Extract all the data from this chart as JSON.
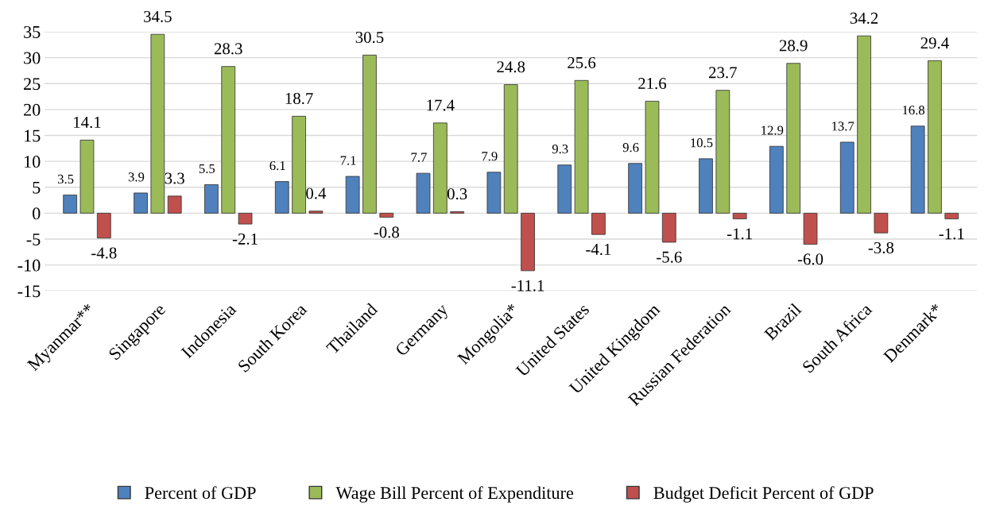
{
  "chart_data": {
    "type": "bar",
    "categories": [
      "Myanmar**",
      "Singapore",
      "Indonesia",
      "South Korea",
      "Thailand",
      "Germany",
      "Mongolia*",
      "United States",
      "United Kingdom",
      "Russian Federation",
      "Brazil",
      "South Africa",
      "Denmark*"
    ],
    "series": [
      {
        "name": "Percent of GDP",
        "color": "#4f81bd",
        "values": [
          3.5,
          3.9,
          5.5,
          6.1,
          7.1,
          7.7,
          7.9,
          9.3,
          9.6,
          10.5,
          12.9,
          13.7,
          16.8
        ],
        "value_labels": [
          "3.5",
          "3.9",
          "5.5",
          "6.1",
          "7.1",
          "7.7",
          "7.9",
          "9.3",
          "9.6",
          "10.5",
          "12.9",
          "13.7",
          "16.8"
        ]
      },
      {
        "name": "Wage Bill Percent of Expenditure",
        "color": "#9bbb59",
        "values": [
          14.1,
          34.5,
          28.3,
          18.7,
          30.5,
          17.4,
          24.8,
          25.6,
          21.6,
          23.7,
          28.9,
          34.2,
          29.4
        ],
        "value_labels": [
          "14.1",
          "34.5",
          "28.3",
          "18.7",
          "30.5",
          "17.4",
          "24.8",
          "25.6",
          "21.6",
          "23.7",
          "28.9",
          "34.2",
          "29.4"
        ]
      },
      {
        "name": "Budget Deficit Percent of GDP",
        "color": "#c0504d",
        "values": [
          -4.8,
          3.3,
          -2.1,
          0.4,
          -0.8,
          0.3,
          -11.1,
          -4.1,
          -5.6,
          -1.1,
          -6.0,
          -3.8,
          -1.1
        ],
        "value_labels": [
          "-4.8",
          "3.3",
          "-2.1",
          "0.4",
          "-0.8",
          "0.3",
          "-11.1",
          "-4.1",
          "-5.6",
          "-1.1",
          "-6.0",
          "-3.8",
          "-1.1"
        ]
      }
    ],
    "ylim": [
      -15,
      35
    ],
    "yticks": [
      -15,
      -10,
      -5,
      0,
      5,
      10,
      15,
      20,
      25,
      30,
      35
    ],
    "grid": "y",
    "legend": "bottom"
  }
}
